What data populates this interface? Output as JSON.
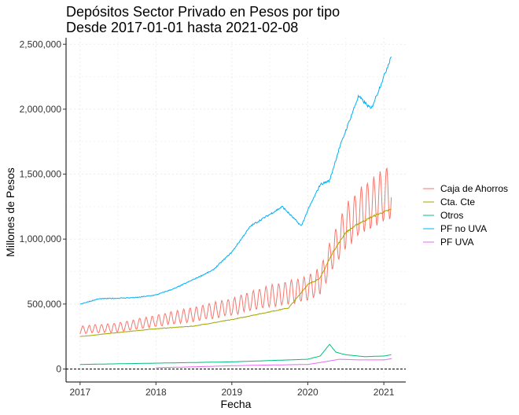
{
  "chart_data": {
    "type": "line",
    "title": "Depósitos Sector Privado en Pesos por tipo",
    "subtitle": "Desde 2017-01-01 hasta 2021-02-08",
    "xlabel": "Fecha",
    "ylabel": "Millones de Pesos",
    "x_range": [
      "2017-01-01",
      "2021-02-08"
    ],
    "x_ticks": [
      "2017",
      "2018",
      "2019",
      "2020",
      "2021"
    ],
    "ylim": [
      -100000,
      2550000
    ],
    "y_ticks": [
      0,
      500000,
      1000000,
      1500000,
      2000000,
      2500000
    ],
    "y_tick_labels": [
      "0",
      "500,000",
      "1,000,000",
      "1,500,000",
      "2,000,000",
      "2,500,000"
    ],
    "grid": true,
    "reference_line": 0,
    "legend_position": "right",
    "series": [
      {
        "name": "Caja de Ahorros",
        "color": "#F8766D",
        "style": "seasonal",
        "points": [
          [
            "2017-01-01",
            300000
          ],
          [
            "2017-07-01",
            320000
          ],
          [
            "2018-01-01",
            370000
          ],
          [
            "2018-07-01",
            420000
          ],
          [
            "2019-01-01",
            480000
          ],
          [
            "2019-07-01",
            560000
          ],
          [
            "2020-01-01",
            620000
          ],
          [
            "2020-03-01",
            680000
          ],
          [
            "2020-05-01",
            900000
          ],
          [
            "2020-07-01",
            1100000
          ],
          [
            "2020-09-01",
            1200000
          ],
          [
            "2020-12-01",
            1300000
          ],
          [
            "2021-01-10",
            1350000
          ],
          [
            "2021-02-08",
            1350000
          ]
        ]
      },
      {
        "name": "Cta. Cte",
        "color": "#A3A500",
        "style": "smooth",
        "points": [
          [
            "2017-01-01",
            250000
          ],
          [
            "2017-07-01",
            280000
          ],
          [
            "2018-01-01",
            310000
          ],
          [
            "2018-07-01",
            330000
          ],
          [
            "2019-01-01",
            380000
          ],
          [
            "2019-07-01",
            440000
          ],
          [
            "2019-10-01",
            470000
          ],
          [
            "2020-01-01",
            650000
          ],
          [
            "2020-03-01",
            700000
          ],
          [
            "2020-05-01",
            900000
          ],
          [
            "2020-07-01",
            1050000
          ],
          [
            "2020-09-01",
            1120000
          ],
          [
            "2020-12-01",
            1190000
          ],
          [
            "2021-02-08",
            1230000
          ]
        ]
      },
      {
        "name": "Otros",
        "color": "#00BF7D",
        "style": "smooth",
        "points": [
          [
            "2017-01-01",
            35000
          ],
          [
            "2018-01-01",
            45000
          ],
          [
            "2019-01-01",
            55000
          ],
          [
            "2020-01-01",
            75000
          ],
          [
            "2020-03-01",
            100000
          ],
          [
            "2020-04-15",
            190000
          ],
          [
            "2020-05-15",
            130000
          ],
          [
            "2020-07-01",
            110000
          ],
          [
            "2020-10-01",
            95000
          ],
          [
            "2021-01-01",
            100000
          ],
          [
            "2021-02-08",
            110000
          ]
        ]
      },
      {
        "name": "PF no UVA",
        "color": "#00B0F6",
        "style": "smooth",
        "points": [
          [
            "2017-01-01",
            500000
          ],
          [
            "2017-04-01",
            540000
          ],
          [
            "2017-10-01",
            550000
          ],
          [
            "2018-01-01",
            570000
          ],
          [
            "2018-04-01",
            620000
          ],
          [
            "2018-10-01",
            760000
          ],
          [
            "2019-01-01",
            900000
          ],
          [
            "2019-04-01",
            1100000
          ],
          [
            "2019-09-01",
            1250000
          ],
          [
            "2019-10-01",
            1200000
          ],
          [
            "2019-12-01",
            1100000
          ],
          [
            "2020-01-01",
            1220000
          ],
          [
            "2020-03-01",
            1420000
          ],
          [
            "2020-04-15",
            1450000
          ],
          [
            "2020-06-01",
            1700000
          ],
          [
            "2020-09-01",
            2100000
          ],
          [
            "2020-11-01",
            2000000
          ],
          [
            "2021-01-01",
            2250000
          ],
          [
            "2021-02-08",
            2420000
          ]
        ]
      },
      {
        "name": "PF UVA",
        "color": "#E76BF3",
        "style": "smooth",
        "points": [
          [
            "2018-01-01",
            10000
          ],
          [
            "2018-06-01",
            15000
          ],
          [
            "2019-01-01",
            25000
          ],
          [
            "2019-06-01",
            30000
          ],
          [
            "2020-01-01",
            35000
          ],
          [
            "2020-03-01",
            50000
          ],
          [
            "2020-06-01",
            75000
          ],
          [
            "2020-09-01",
            70000
          ],
          [
            "2021-01-01",
            70000
          ],
          [
            "2021-02-08",
            80000
          ]
        ]
      }
    ]
  }
}
